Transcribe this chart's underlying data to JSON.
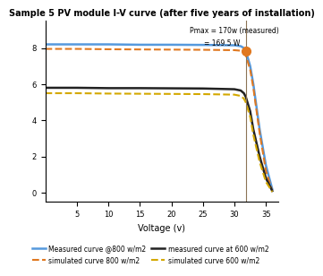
{
  "title": "Sample 5 PV module I-V curve (after five years of installation)",
  "annotation1": "Pmax = 170w (measured)",
  "annotation2": "= 169.5 W",
  "xlabel": "Voltage (v)",
  "ylabel": "",
  "xlim": [
    0,
    37
  ],
  "ylim": [
    -0.5,
    9.5
  ],
  "xticks": [
    5,
    10,
    15,
    20,
    25,
    30,
    35
  ],
  "vline_x": 31.8,
  "dot_x": 31.8,
  "dot_y": 7.85,
  "legend": [
    {
      "label": "Measured curve @800 w/m2",
      "color": "#5599dd",
      "style": "solid",
      "lw": 1.8
    },
    {
      "label": "simulated curve 800 w/m2",
      "color": "#e07820",
      "style": "dashed",
      "lw": 1.5
    },
    {
      "label": "measured curve at 600 w/m2",
      "color": "#222222",
      "style": "solid",
      "lw": 1.8
    },
    {
      "label": "simulated curve 600 w/m2",
      "color": "#d4a800",
      "style": "dashed",
      "lw": 1.5
    }
  ],
  "curves": {
    "measured_800": {
      "color": "#5599dd",
      "lw": 1.8,
      "style": "solid",
      "x": [
        0,
        5,
        10,
        15,
        20,
        25,
        30,
        31,
        31.5,
        31.8,
        32.5,
        33,
        34,
        35,
        36
      ],
      "y": [
        8.2,
        8.2,
        8.2,
        8.18,
        8.18,
        8.17,
        8.15,
        8.1,
        8.0,
        7.85,
        7.0,
        6.0,
        3.5,
        1.5,
        0.2
      ]
    },
    "simulated_800": {
      "color": "#e07820",
      "lw": 1.5,
      "style": "dashed",
      "x": [
        0,
        5,
        10,
        15,
        20,
        25,
        30,
        31,
        31.5,
        31.8,
        32.5,
        33,
        34,
        35,
        36
      ],
      "y": [
        7.95,
        7.95,
        7.93,
        7.92,
        7.91,
        7.9,
        7.88,
        7.85,
        7.75,
        7.6,
        6.8,
        5.8,
        3.3,
        1.2,
        0.1
      ]
    },
    "measured_600": {
      "color": "#222222",
      "lw": 1.8,
      "style": "solid",
      "x": [
        0,
        5,
        10,
        15,
        20,
        25,
        30,
        31,
        31.5,
        31.8,
        32.5,
        33,
        34,
        35,
        36
      ],
      "y": [
        5.8,
        5.8,
        5.78,
        5.78,
        5.77,
        5.76,
        5.72,
        5.65,
        5.5,
        5.3,
        4.5,
        3.5,
        2.0,
        0.8,
        0.1
      ]
    },
    "simulated_600": {
      "color": "#d4a800",
      "lw": 1.5,
      "style": "dashed",
      "x": [
        0,
        5,
        10,
        15,
        20,
        25,
        30,
        31,
        31.5,
        31.8,
        32.5,
        33,
        34,
        35,
        36
      ],
      "y": [
        5.5,
        5.5,
        5.48,
        5.47,
        5.46,
        5.45,
        5.42,
        5.35,
        5.2,
        5.0,
        4.2,
        3.2,
        1.7,
        0.6,
        0.05
      ]
    }
  },
  "bg_color": "#ffffff",
  "title_fontsize": 7,
  "legend_fontsize": 5.5,
  "tick_fontsize": 6
}
